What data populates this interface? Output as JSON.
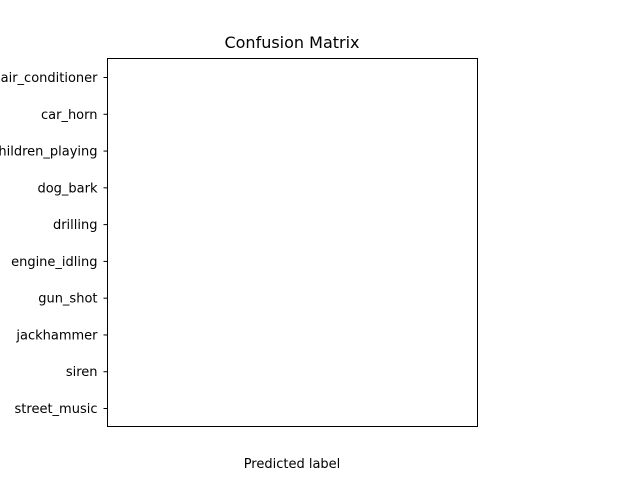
{
  "chart_data": {
    "type": "heatmap",
    "title": "Confusion Matrix",
    "xlabel": "Predicted label",
    "ylabel": "",
    "y_categories": [
      "air_conditioner",
      "car_horn",
      "children_playing",
      "dog_bark",
      "drilling",
      "engine_idling",
      "gun_shot",
      "jackhammer",
      "siren",
      "street_music"
    ],
    "x_categories": [],
    "values": [],
    "grid": false
  }
}
